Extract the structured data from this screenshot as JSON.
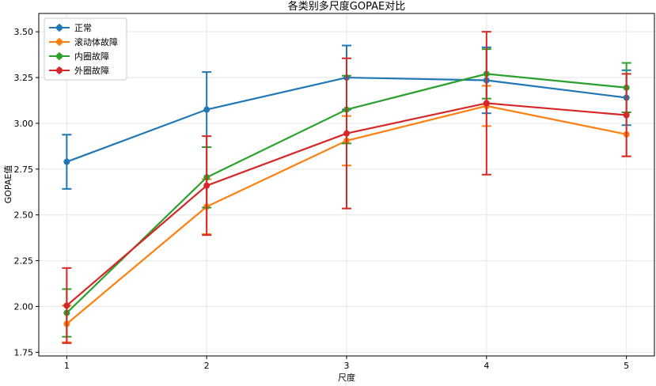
{
  "chart_data": {
    "type": "line",
    "title": "各类别多尺度GOPAE对比",
    "xlabel": "尺度",
    "ylabel": "GOPAE值",
    "x": [
      1,
      2,
      3,
      4,
      5
    ],
    "x_ticks": [
      "1",
      "2",
      "3",
      "4",
      "5"
    ],
    "xlim": [
      0.8,
      5.2
    ],
    "ylim": [
      1.73,
      3.6
    ],
    "y_ticks": [
      "1.75",
      "2.00",
      "2.25",
      "2.50",
      "2.75",
      "3.00",
      "3.25",
      "3.50"
    ],
    "y_tick_values": [
      1.75,
      2.0,
      2.25,
      2.5,
      2.75,
      3.0,
      3.25,
      3.5
    ],
    "grid": true,
    "legend_position": "top-left",
    "series": [
      {
        "name": "正常",
        "color": "#1f77b4",
        "values": [
          2.79,
          3.075,
          3.25,
          3.235,
          3.14
        ],
        "errors": [
          0.148,
          0.205,
          0.175,
          0.18,
          0.15
        ]
      },
      {
        "name": "滚动体故障",
        "color": "#ff7f0e",
        "values": [
          1.905,
          2.545,
          2.905,
          3.095,
          2.94
        ],
        "errors": [
          0.1,
          0.15,
          0.135,
          0.11,
          0.12
        ]
      },
      {
        "name": "内圈故障",
        "color": "#2ca02c",
        "values": [
          1.965,
          2.705,
          3.075,
          3.27,
          3.195
        ],
        "errors": [
          0.13,
          0.165,
          0.185,
          0.135,
          0.135
        ]
      },
      {
        "name": "外圈故障",
        "color": "#d62728",
        "values": [
          2.005,
          2.66,
          2.945,
          3.11,
          3.045
        ],
        "errors": [
          0.205,
          0.27,
          0.41,
          0.39,
          0.225
        ]
      }
    ]
  }
}
